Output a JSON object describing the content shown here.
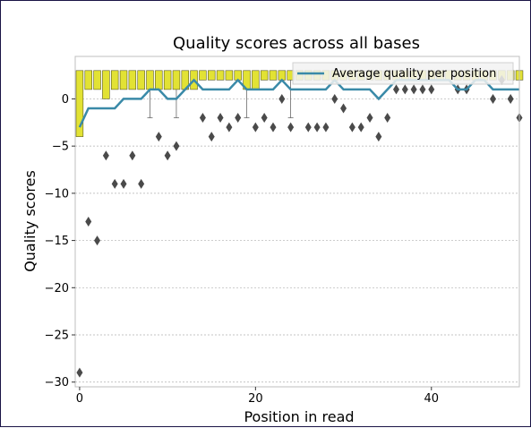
{
  "chart_data": {
    "type": "boxplot",
    "title": "Quality scores across all bases",
    "xlabel": "Position in read",
    "ylabel": "Quality scores",
    "xlim": [
      -0.5,
      50
    ],
    "ylim": [
      -30.5,
      4.5
    ],
    "xticks": [
      0,
      20,
      40
    ],
    "yticks": [
      0,
      -5,
      -10,
      -15,
      -20,
      -25,
      -30
    ],
    "grid": "horizontal, dashed",
    "legend": {
      "placement": "top-right",
      "entries": [
        "Average quality per position"
      ]
    },
    "colors": {
      "box": "#e2e234",
      "mean_line": "#3a8aa8",
      "outlier": "#4a4a4a",
      "grid": "#b0b0b0"
    },
    "boxes": {
      "positions": [
        0,
        1,
        2,
        3,
        4,
        5,
        6,
        7,
        8,
        9,
        10,
        11,
        12,
        13,
        14,
        15,
        16,
        17,
        18,
        19,
        20,
        21,
        22,
        23,
        24,
        25,
        26,
        27,
        28,
        29,
        30,
        31,
        32,
        33,
        34,
        35,
        36,
        37,
        38,
        39,
        40,
        41,
        42,
        43,
        44,
        45,
        46,
        47,
        48,
        49,
        50
      ],
      "q1": [
        -4,
        1,
        1,
        0,
        1,
        1,
        1,
        1,
        1,
        1,
        1,
        1,
        1,
        1,
        2,
        2,
        2,
        2,
        2,
        1,
        1,
        2,
        2,
        2,
        2,
        2,
        2,
        2,
        2,
        2,
        2,
        2,
        2,
        2,
        2,
        2,
        2,
        2,
        2,
        2,
        2,
        2,
        2,
        2,
        2,
        2,
        2,
        2,
        2,
        2,
        2
      ],
      "q3": [
        3,
        3,
        3,
        3,
        3,
        3,
        3,
        3,
        3,
        3,
        3,
        3,
        3,
        3,
        3,
        3,
        3,
        3,
        3,
        3,
        3,
        3,
        3,
        3,
        3,
        3,
        3,
        3,
        3,
        3,
        3,
        3,
        3,
        3,
        3,
        3,
        3,
        3,
        3,
        3,
        3,
        3,
        3,
        3,
        3,
        3,
        3,
        3,
        3,
        3,
        3
      ],
      "whisker_low": [
        null,
        null,
        null,
        null,
        null,
        null,
        null,
        null,
        -2,
        null,
        null,
        -2,
        1,
        null,
        null,
        null,
        null,
        null,
        null,
        -2,
        null,
        null,
        null,
        null,
        -2,
        null,
        null,
        null,
        null,
        null,
        null,
        null,
        null,
        null,
        null,
        null,
        null,
        null,
        null,
        null,
        null,
        null,
        null,
        null,
        null,
        null,
        null,
        null,
        null,
        null,
        null
      ]
    },
    "mean_line": {
      "name": "Average quality per position",
      "x": [
        0,
        1,
        2,
        3,
        4,
        5,
        6,
        7,
        8,
        9,
        10,
        11,
        12,
        13,
        14,
        15,
        16,
        17,
        18,
        19,
        20,
        21,
        22,
        23,
        24,
        25,
        26,
        27,
        28,
        29,
        30,
        31,
        32,
        33,
        34,
        35,
        36,
        37,
        38,
        39,
        40,
        41,
        42,
        43,
        44,
        45,
        46,
        47,
        48,
        49,
        50
      ],
      "y": [
        -3,
        -1,
        -1,
        -1,
        -1,
        0,
        0,
        0,
        1,
        1,
        0,
        0,
        1,
        2,
        1,
        1,
        1,
        1,
        2,
        1,
        1,
        1,
        1,
        2,
        1,
        1,
        1,
        1,
        1,
        2,
        1,
        1,
        1,
        1,
        0,
        1,
        2,
        2,
        2,
        2,
        2,
        2,
        2,
        1,
        1,
        2,
        2,
        1,
        1,
        1,
        1
      ]
    },
    "outliers": {
      "x": [
        0,
        1,
        2,
        3,
        4,
        5,
        6,
        7,
        9,
        10,
        11,
        14,
        15,
        16,
        17,
        18,
        20,
        21,
        22,
        23,
        24,
        26,
        27,
        28,
        29,
        30,
        31,
        32,
        33,
        34,
        35,
        36,
        37,
        38,
        39,
        40,
        43,
        44,
        47,
        48,
        49,
        50
      ],
      "y": [
        -29,
        -13,
        -15,
        -6,
        -9,
        -9,
        -6,
        -9,
        -4,
        -6,
        -5,
        -2,
        -4,
        -2,
        -3,
        -2,
        -3,
        -2,
        -3,
        0,
        -3,
        -3,
        -3,
        -3,
        0,
        -1,
        -3,
        -3,
        -2,
        -4,
        -2,
        1,
        1,
        1,
        1,
        1,
        1,
        1,
        0,
        2,
        0,
        -2
      ]
    }
  }
}
